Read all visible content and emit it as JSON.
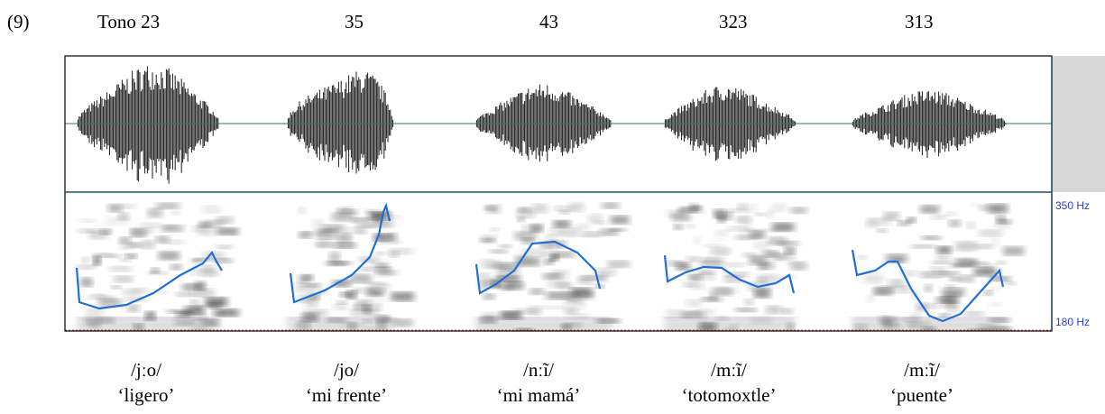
{
  "example_number": "(9)",
  "tones": [
    "Tono 23",
    "35",
    "43",
    "323",
    "313"
  ],
  "frequency_labels": {
    "top": "350 Hz",
    "bottom": "180 Hz"
  },
  "words": [
    {
      "transcription": "/jːo/",
      "gloss": "‘ligero’"
    },
    {
      "transcription": "/jo/",
      "gloss": "‘mi frente’"
    },
    {
      "transcription": "/nːĩ/",
      "gloss": "‘mi mamá’"
    },
    {
      "transcription": "/mːĩ/",
      "gloss": "‘totomoxtle’"
    },
    {
      "transcription": "/mːĩ/",
      "gloss": "‘puente’"
    }
  ]
}
